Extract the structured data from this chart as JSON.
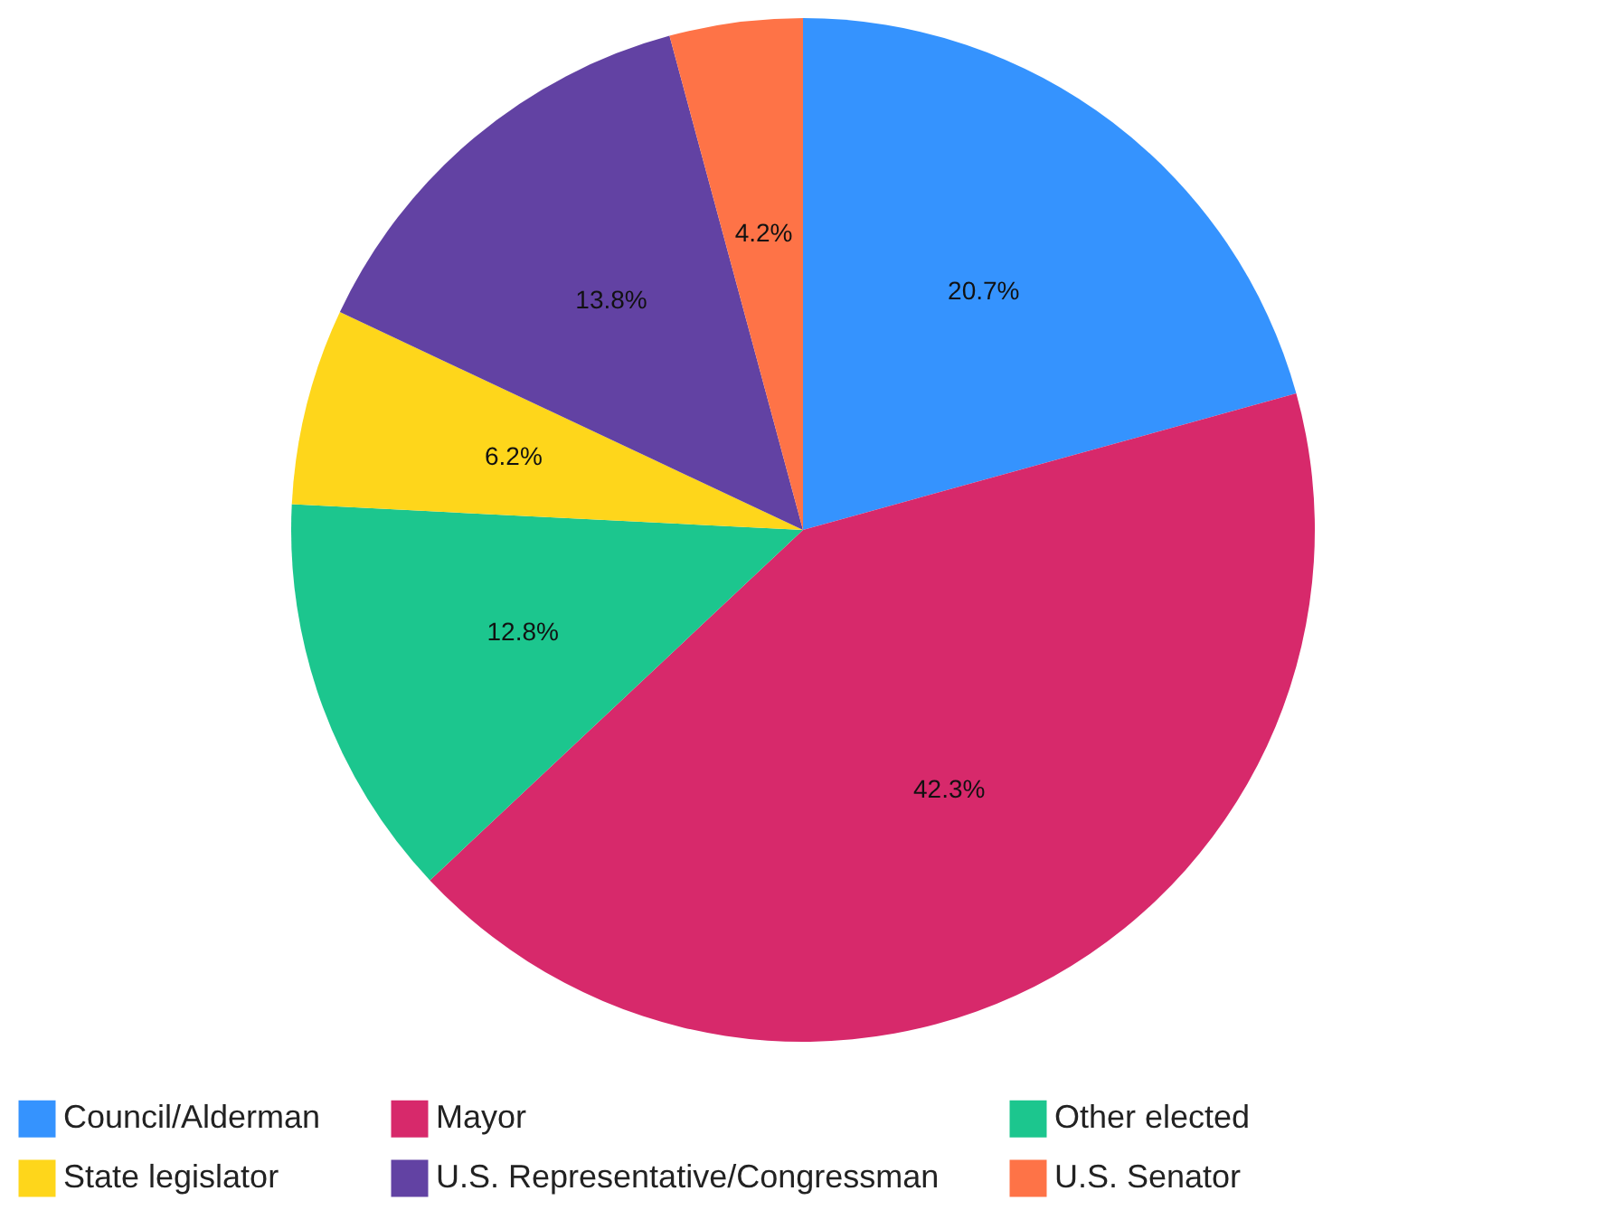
{
  "chart_data": {
    "type": "pie",
    "categories": [
      "Council/Alderman",
      "Mayor",
      "Other elected",
      "State legislator",
      "U.S. Representative/Congressman",
      "U.S. Senator"
    ],
    "values": [
      20.7,
      42.3,
      12.8,
      6.2,
      13.8,
      4.2
    ],
    "colors": [
      "#3593fe",
      "#d7296b",
      "#1cc68e",
      "#fed61b",
      "#6242a3",
      "#fe7347"
    ],
    "value_labels": [
      "20.7%",
      "42.3%",
      "12.8%",
      "6.2%",
      "13.8%",
      "4.2%"
    ],
    "legend": "bottom"
  }
}
